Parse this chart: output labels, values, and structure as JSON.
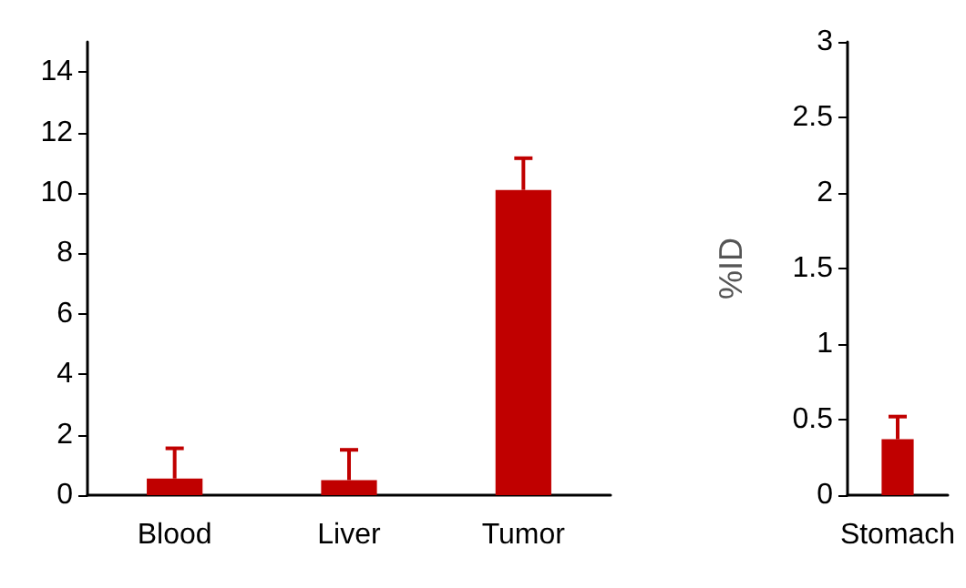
{
  "chart_data": [
    {
      "type": "bar",
      "categories": [
        "Blood",
        "Liver",
        "Tumor"
      ],
      "series": [
        {
          "color": "#c00000",
          "values": [
            0.55,
            0.5,
            10.1
          ],
          "errors": [
            [
              0.55,
              1.55
            ],
            [
              0.5,
              1.5
            ],
            [
              10.1,
              11.15
            ]
          ]
        }
      ],
      "ylim": [
        0,
        15
      ],
      "yticks": [
        0,
        2,
        4,
        6,
        8,
        10,
        12,
        14
      ],
      "grid": false
    },
    {
      "type": "bar",
      "ylabel": "%ID",
      "categories": [
        "Stomach"
      ],
      "series": [
        {
          "color": "#c00000",
          "values": [
            0.37
          ],
          "errors": [
            [
              0.37,
              0.52
            ]
          ]
        }
      ],
      "ylim": [
        0,
        3
      ],
      "yticks": [
        0,
        0.5,
        1,
        1.5,
        2,
        2.5,
        3
      ],
      "grid": false
    }
  ]
}
